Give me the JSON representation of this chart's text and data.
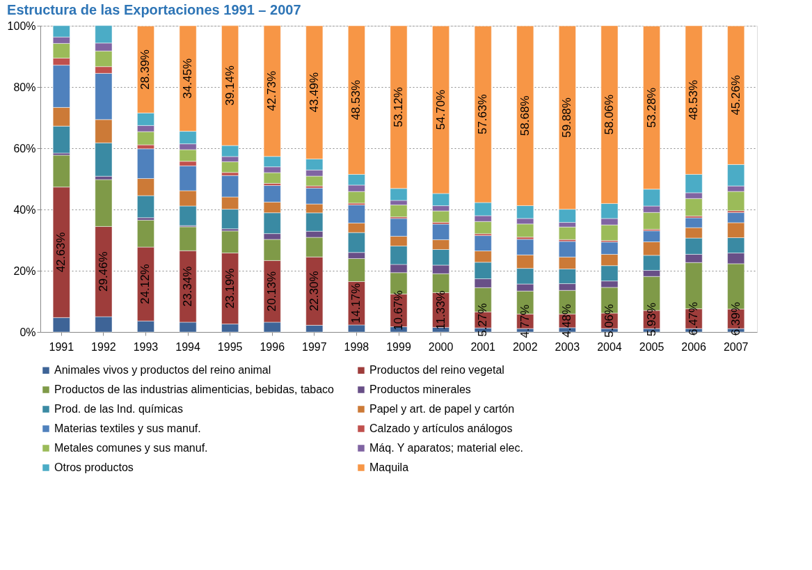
{
  "chart_data": {
    "type": "bar",
    "stacked": true,
    "title": "Estructura de las Exportaciones 1991 – 2007",
    "categories": [
      "1991",
      "1992",
      "1993",
      "1994",
      "1995",
      "1996",
      "1997",
      "1998",
      "1999",
      "2000",
      "2001",
      "2002",
      "2003",
      "2004",
      "2005",
      "2006",
      "2007"
    ],
    "ylim": [
      0,
      100
    ],
    "yticks": [
      {
        "value": 0,
        "label": "0%"
      },
      {
        "value": 20,
        "label": "20%"
      },
      {
        "value": 40,
        "label": "40%"
      },
      {
        "value": 60,
        "label": "60%"
      },
      {
        "value": 80,
        "label": "80%"
      },
      {
        "value": 100,
        "label": "100%"
      }
    ],
    "grid": "y",
    "legend": "bottom",
    "series": [
      {
        "name": "Animales vivos y productos del reino animal",
        "color": "#3e6497",
        "values": [
          4.7,
          5.0,
          3.6,
          3.2,
          2.6,
          3.2,
          2.2,
          2.3,
          1.7,
          1.5,
          1.3,
          1.1,
          1.4,
          1.1,
          1.1,
          1.1,
          1.1
        ]
      },
      {
        "name": "Productos del reino vegetal",
        "color": "#9e3d3b",
        "values": [
          42.63,
          29.46,
          24.12,
          23.34,
          23.19,
          20.13,
          22.3,
          14.17,
          10.67,
          11.33,
          5.27,
          4.77,
          4.48,
          5.06,
          5.93,
          6.47,
          6.39
        ],
        "value_labels": [
          "42.63%",
          "29.46%",
          "24.12%",
          "23.34%",
          "23.19%",
          "20.13%",
          "22.30%",
          "14.17%",
          "10.67%",
          "11.33%",
          "5.27%",
          "4.77%",
          "4.48%",
          "5.06%",
          "5.93%",
          "6.47%",
          "6.39%"
        ]
      },
      {
        "name": "Productos de las industrias alimenticias, bebidas, tabaco",
        "color": "#7f9a48",
        "values": [
          10.4,
          15.3,
          8.8,
          7.8,
          7.2,
          6.9,
          6.4,
          7.5,
          7.0,
          6.2,
          7.9,
          7.5,
          7.7,
          8.4,
          11.1,
          15.1,
          14.8
        ]
      },
      {
        "name": "Productos minerales",
        "color": "#684f87",
        "values": [
          0.7,
          1.1,
          0.8,
          0.4,
          0.7,
          1.9,
          2.0,
          2.0,
          2.7,
          2.8,
          2.9,
          2.3,
          2.2,
          2.1,
          2.0,
          2.7,
          3.5
        ]
      },
      {
        "name": "Prod. de las Ind. químicas",
        "color": "#3a8aa3",
        "values": [
          8.8,
          10.9,
          7.2,
          6.4,
          6.4,
          6.8,
          6.0,
          6.5,
          6.0,
          5.1,
          5.4,
          5.1,
          4.8,
          5.0,
          4.9,
          5.3,
          5.0
        ]
      },
      {
        "name": "Papel y art. de papel y cartón",
        "color": "#cc7a37",
        "values": [
          6.1,
          7.6,
          5.6,
          5.0,
          4.0,
          3.5,
          2.9,
          3.1,
          3.2,
          3.2,
          3.7,
          4.4,
          3.9,
          3.7,
          4.4,
          3.4,
          4.9
        ]
      },
      {
        "name": "Materias textiles y sus manuf.",
        "color": "#4f81bd",
        "values": [
          13.8,
          15.1,
          9.7,
          8.1,
          7.0,
          5.4,
          5.2,
          5.9,
          5.8,
          5.1,
          5.0,
          5.1,
          5.1,
          4.0,
          3.6,
          3.2,
          3.3
        ]
      },
      {
        "name": "Calzado y artículos análogos",
        "color": "#c0504d",
        "values": [
          2.3,
          2.2,
          1.3,
          1.5,
          1.0,
          0.7,
          0.7,
          0.6,
          0.5,
          0.6,
          0.6,
          0.7,
          0.6,
          0.5,
          0.5,
          0.6,
          0.6
        ]
      },
      {
        "name": "Metales comunes y sus manuf.",
        "color": "#9bbb59",
        "values": [
          4.8,
          5.1,
          4.3,
          3.8,
          3.5,
          3.5,
          3.2,
          3.8,
          3.9,
          3.7,
          4.0,
          4.3,
          4.1,
          5.1,
          5.5,
          5.7,
          6.3
        ]
      },
      {
        "name": "Máq. Y aparatos; material elec.",
        "color": "#8064a2",
        "values": [
          2.1,
          2.6,
          2.0,
          1.9,
          1.7,
          1.9,
          2.0,
          2.1,
          1.5,
          1.7,
          1.9,
          1.8,
          1.5,
          2.1,
          2.1,
          1.9,
          1.8
        ]
      },
      {
        "name": "Otros productos",
        "color": "#4bacc6",
        "values": [
          3.7,
          5.7,
          4.1,
          4.1,
          3.6,
          3.4,
          3.6,
          3.5,
          3.9,
          4.0,
          4.3,
          4.2,
          4.3,
          4.9,
          5.5,
          6.0,
          7.0
        ]
      },
      {
        "name": "Maquila",
        "color": "#f79646",
        "values": [
          null,
          null,
          28.39,
          34.45,
          39.14,
          42.73,
          43.49,
          48.53,
          53.12,
          54.7,
          57.63,
          58.68,
          59.88,
          58.06,
          53.28,
          48.53,
          45.26
        ],
        "value_labels": [
          null,
          null,
          "28.39%",
          "34.45%",
          "39.14%",
          "42.73%",
          "43.49%",
          "48.53%",
          "53.12%",
          "54.70%",
          "57.63%",
          "58.68%",
          "59.88%",
          "58.06%",
          "53.28%",
          "48.53%",
          "45.26%"
        ]
      }
    ]
  }
}
